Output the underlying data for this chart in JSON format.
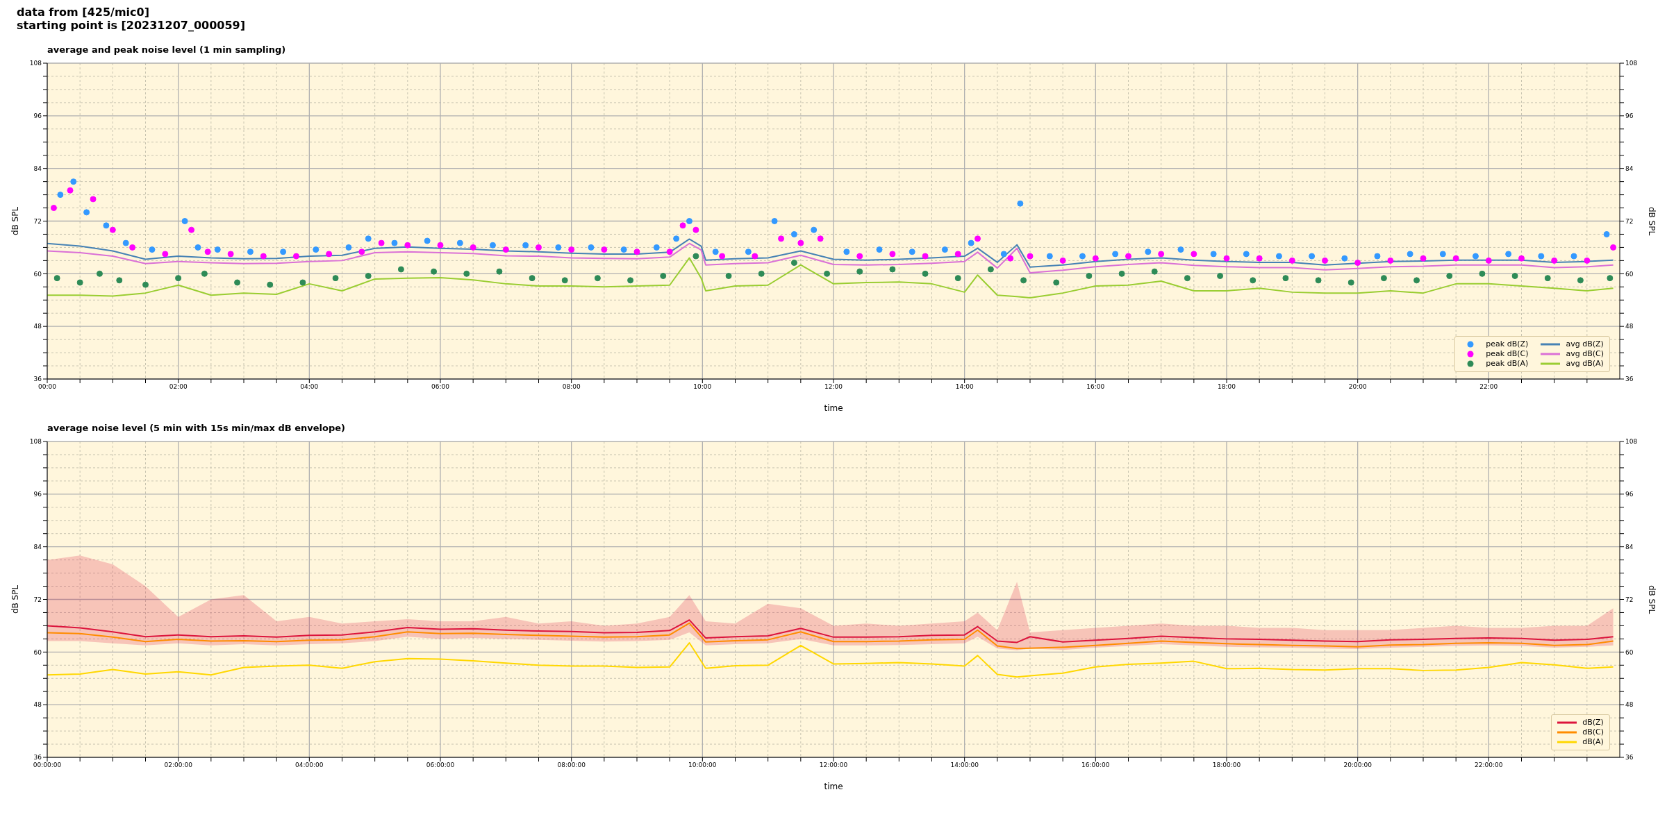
{
  "chart_data": [
    {
      "type": "line",
      "title": "average and peak noise level (1 min sampling)",
      "annotations": [
        "data from [425/mic0]",
        "starting point is [20231207_000059]"
      ],
      "xlabel": "time",
      "ylabel": "dB SPL",
      "y2label": "dB SPL",
      "xlim": [
        0,
        24
      ],
      "xticks": [
        {
          "value": 0,
          "label": "00:00"
        },
        {
          "value": 0.5,
          "label": null
        },
        {
          "value": 1,
          "label": null
        },
        {
          "value": 1.5,
          "label": null
        },
        {
          "value": 2,
          "label": "02:00"
        },
        {
          "value": 2.5,
          "label": null
        },
        {
          "value": 3,
          "label": null
        },
        {
          "value": 3.5,
          "label": null
        },
        {
          "value": 4,
          "label": "04:00"
        },
        {
          "value": 4.5,
          "label": null
        },
        {
          "value": 5,
          "label": null
        },
        {
          "value": 5.5,
          "label": null
        },
        {
          "value": 6,
          "label": "06:00"
        },
        {
          "value": 6.5,
          "label": null
        },
        {
          "value": 7,
          "label": null
        },
        {
          "value": 7.5,
          "label": null
        },
        {
          "value": 8,
          "label": "08:00"
        },
        {
          "value": 8.5,
          "label": null
        },
        {
          "value": 9,
          "label": null
        },
        {
          "value": 9.5,
          "label": null
        },
        {
          "value": 10,
          "label": "10:00"
        },
        {
          "value": 10.5,
          "label": null
        },
        {
          "value": 11,
          "label": null
        },
        {
          "value": 11.5,
          "label": null
        },
        {
          "value": 12,
          "label": "12:00"
        },
        {
          "value": 12.5,
          "label": null
        },
        {
          "value": 13,
          "label": null
        },
        {
          "value": 13.5,
          "label": null
        },
        {
          "value": 14,
          "label": "14:00"
        },
        {
          "value": 14.5,
          "label": null
        },
        {
          "value": 15,
          "label": null
        },
        {
          "value": 15.5,
          "label": null
        },
        {
          "value": 16,
          "label": "16:00"
        },
        {
          "value": 16.5,
          "label": null
        },
        {
          "value": 17,
          "label": null
        },
        {
          "value": 17.5,
          "label": null
        },
        {
          "value": 18,
          "label": "18:00"
        },
        {
          "value": 18.5,
          "label": null
        },
        {
          "value": 19,
          "label": null
        },
        {
          "value": 19.5,
          "label": null
        },
        {
          "value": 20,
          "label": "20:00"
        },
        {
          "value": 20.5,
          "label": null
        },
        {
          "value": 21,
          "label": null
        },
        {
          "value": 21.5,
          "label": null
        },
        {
          "value": 22,
          "label": "22:00"
        },
        {
          "value": 22.5,
          "label": null
        },
        {
          "value": 23,
          "label": null
        },
        {
          "value": 23.5,
          "label": null
        }
      ],
      "ylim": [
        36,
        108
      ],
      "yticks": [
        36,
        {
          "value": 39,
          "label": null
        },
        {
          "value": 42,
          "label": null
        },
        {
          "value": 45,
          "label": null
        },
        48,
        {
          "value": 51,
          "label": null
        },
        {
          "value": 54,
          "label": null
        },
        {
          "value": 57,
          "label": null
        },
        60,
        {
          "value": 63,
          "label": null
        },
        {
          "value": 66,
          "label": null
        },
        {
          "value": 69,
          "label": null
        },
        72,
        {
          "value": 75,
          "label": null
        },
        {
          "value": 78,
          "label": null
        },
        {
          "value": 81,
          "label": null
        },
        84,
        {
          "value": 87,
          "label": null
        },
        {
          "value": 90,
          "label": null
        },
        {
          "value": 93,
          "label": null
        },
        96,
        {
          "value": 99,
          "label": null
        },
        {
          "value": 102,
          "label": null
        },
        {
          "value": 105,
          "label": null
        },
        108
      ],
      "y2lim": [
        36,
        108
      ],
      "y2ticks": [
        36,
        {
          "value": 39,
          "label": null
        },
        {
          "value": 42,
          "label": null
        },
        {
          "value": 45,
          "label": null
        },
        48,
        {
          "value": 51,
          "label": null
        },
        {
          "value": 54,
          "label": null
        },
        {
          "value": 57,
          "label": null
        },
        60,
        {
          "value": 63,
          "label": null
        },
        {
          "value": 66,
          "label": null
        },
        {
          "value": 69,
          "label": null
        },
        72,
        {
          "value": 75,
          "label": null
        },
        {
          "value": 78,
          "label": null
        },
        {
          "value": 81,
          "label": null
        },
        84,
        {
          "value": 87,
          "label": null
        },
        {
          "value": 90,
          "label": null
        },
        {
          "value": 93,
          "label": null
        },
        96,
        {
          "value": 99,
          "label": null
        },
        {
          "value": 102,
          "label": null
        },
        {
          "value": 105,
          "label": null
        },
        108
      ],
      "grid": true,
      "legend": "bottom right",
      "line_style": "solid",
      "series": [
        {
          "name": "peak dB(Z)",
          "type": "scatter",
          "marker": "circle",
          "color": "#3399ff",
          "x": [
            0.2,
            0.4,
            0.6,
            0.9,
            1.2,
            1.6,
            2.1,
            2.3,
            2.6,
            3.1,
            3.6,
            4.1,
            4.6,
            4.9,
            5.3,
            5.8,
            6.3,
            6.8,
            7.3,
            7.8,
            8.3,
            8.8,
            9.3,
            9.6,
            9.8,
            10.2,
            10.7,
            11.1,
            11.4,
            11.7,
            12.2,
            12.7,
            13.2,
            13.7,
            14.1,
            14.6,
            14.85,
            15.3,
            15.8,
            16.3,
            16.8,
            17.3,
            17.8,
            18.3,
            18.8,
            19.3,
            19.8,
            20.3,
            20.8,
            21.3,
            21.8,
            22.3,
            22.8,
            23.3,
            23.8
          ],
          "values": [
            78,
            81,
            74,
            71,
            67,
            65.5,
            72,
            66,
            65.5,
            65,
            65,
            65.5,
            66,
            68,
            67,
            67.5,
            67,
            66.5,
            66.5,
            66,
            66,
            65.5,
            66,
            68,
            72,
            65,
            65,
            72,
            69,
            70,
            65,
            65.5,
            65,
            65.5,
            67,
            64.5,
            76,
            64,
            64,
            64.5,
            65,
            65.5,
            64.5,
            64.5,
            64,
            64,
            63.5,
            64,
            64.5,
            64.5,
            64,
            64.5,
            64,
            64,
            69
          ]
        },
        {
          "name": "peak dB(C)",
          "type": "scatter",
          "marker": "circle",
          "color": "#ff00ff",
          "x": [
            0.1,
            0.35,
            0.7,
            1.0,
            1.3,
            1.8,
            2.2,
            2.45,
            2.8,
            3.3,
            3.8,
            4.3,
            4.8,
            5.1,
            5.5,
            6.0,
            6.5,
            7.0,
            7.5,
            8.0,
            8.5,
            9.0,
            9.5,
            9.7,
            9.9,
            10.3,
            10.8,
            11.2,
            11.5,
            11.8,
            12.4,
            12.9,
            13.4,
            13.9,
            14.2,
            14.7,
            15.0,
            15.5,
            16.0,
            16.5,
            17.0,
            17.5,
            18.0,
            18.5,
            19.0,
            19.5,
            20.0,
            20.5,
            21.0,
            21.5,
            22.0,
            22.5,
            23.0,
            23.5,
            23.9
          ],
          "values": [
            75,
            79,
            77,
            70,
            66,
            64.5,
            70,
            65,
            64.5,
            64,
            64,
            64.5,
            65,
            67,
            66.5,
            66.5,
            66,
            65.5,
            66,
            65.5,
            65.5,
            65,
            65,
            71,
            70,
            64,
            64,
            68,
            67,
            68,
            64,
            64.5,
            64,
            64.5,
            68,
            63.5,
            64,
            63,
            63.5,
            64,
            64.5,
            64.5,
            63.5,
            63.5,
            63,
            63,
            62.5,
            63,
            63.5,
            63.5,
            63,
            63.5,
            63,
            63,
            66
          ]
        },
        {
          "name": "peak dB(A)",
          "type": "scatter",
          "marker": "circle",
          "color": "#2e8b57",
          "x": [
            0.15,
            0.5,
            0.8,
            1.1,
            1.5,
            2.0,
            2.4,
            2.9,
            3.4,
            3.9,
            4.4,
            4.9,
            5.4,
            5.9,
            6.4,
            6.9,
            7.4,
            7.9,
            8.4,
            8.9,
            9.4,
            9.9,
            10.4,
            10.9,
            11.4,
            11.9,
            12.4,
            12.9,
            13.4,
            13.9,
            14.4,
            14.9,
            15.4,
            15.9,
            16.4,
            16.9,
            17.4,
            17.9,
            18.4,
            18.9,
            19.4,
            19.9,
            20.4,
            20.9,
            21.4,
            21.9,
            22.4,
            22.9,
            23.4,
            23.85
          ],
          "values": [
            59,
            58,
            60,
            58.5,
            57.5,
            59,
            60,
            58,
            57.5,
            58,
            59,
            59.5,
            61,
            60.5,
            60,
            60.5,
            59,
            58.5,
            59,
            58.5,
            59.5,
            64,
            59.5,
            60,
            62.5,
            60,
            60.5,
            61,
            60,
            59,
            61,
            58.5,
            58,
            59.5,
            60,
            60.5,
            59,
            59.5,
            58.5,
            59,
            58.5,
            58,
            59,
            58.5,
            59.5,
            60,
            59.5,
            59,
            58.5,
            59
          ]
        },
        {
          "name": "avg dB(Z)",
          "type": "line",
          "marker": "none",
          "color": "#4682b4",
          "x": [
            0,
            0.5,
            1,
            1.5,
            2,
            2.5,
            3,
            3.5,
            4,
            4.5,
            5,
            5.5,
            6,
            6.5,
            7,
            7.5,
            8,
            8.5,
            9,
            9.5,
            9.8,
            9.98,
            10.05,
            10.5,
            11,
            11.5,
            12,
            12.5,
            13,
            13.5,
            14,
            14.2,
            14.5,
            14.8,
            15,
            15.5,
            16,
            16.5,
            17,
            17.5,
            18,
            18.5,
            19,
            19.5,
            20,
            20.5,
            21,
            21.5,
            22,
            22.5,
            23,
            23.5,
            23.9
          ],
          "values": [
            66.9,
            66.3,
            65.2,
            63.3,
            64,
            63.6,
            63.4,
            63.5,
            64,
            64.2,
            65.8,
            66.1,
            65.8,
            65.6,
            65.2,
            65,
            64.7,
            64.5,
            64.5,
            64.9,
            67.9,
            66.3,
            63.1,
            63.4,
            63.6,
            65.2,
            63.3,
            63.1,
            63.3,
            63.6,
            64,
            65.8,
            62.6,
            66.6,
            61.5,
            62,
            62.8,
            63.3,
            63.6,
            63.1,
            62.8,
            62.6,
            62.6,
            62,
            62.4,
            62.8,
            62.9,
            63.1,
            63.1,
            63.1,
            62.6,
            62.8,
            63.1
          ]
        },
        {
          "name": "avg dB(C)",
          "type": "line",
          "marker": "none",
          "color": "#da70d6",
          "x": [
            0,
            0.5,
            1,
            1.5,
            2,
            2.5,
            3,
            3.5,
            4,
            4.5,
            5,
            5.5,
            6,
            6.5,
            7,
            7.5,
            8,
            8.5,
            9,
            9.5,
            9.8,
            9.98,
            10.05,
            10.5,
            11,
            11.5,
            12,
            12.5,
            13,
            13.5,
            14,
            14.2,
            14.5,
            14.8,
            15,
            15.5,
            16,
            16.5,
            17,
            17.5,
            18,
            18.5,
            19,
            19.5,
            20,
            20.5,
            21,
            21.5,
            22,
            22.5,
            23,
            23.5,
            23.9
          ],
          "values": [
            65.2,
            64.8,
            64.0,
            62.3,
            62.8,
            62.5,
            62.3,
            62.4,
            62.8,
            63.0,
            64.8,
            65.0,
            64.8,
            64.6,
            64.1,
            64.0,
            63.6,
            63.5,
            63.4,
            63.8,
            66.9,
            65.4,
            62.0,
            62.3,
            62.5,
            64.2,
            62.1,
            62.0,
            62.1,
            62.4,
            62.8,
            64.9,
            61.3,
            65.8,
            60.2,
            60.8,
            61.6,
            62.1,
            62.5,
            61.9,
            61.6,
            61.4,
            61.4,
            60.9,
            61.2,
            61.6,
            61.7,
            62.0,
            62.0,
            62.0,
            61.4,
            61.6,
            62.0
          ]
        },
        {
          "name": "avg dB(A)",
          "type": "line",
          "marker": "none",
          "color": "#9acd32",
          "x": [
            0,
            0.5,
            1,
            1.5,
            2,
            2.5,
            3,
            3.5,
            4,
            4.5,
            5,
            5.5,
            6,
            6.5,
            7,
            7.5,
            8,
            8.5,
            9,
            9.5,
            9.8,
            9.98,
            10.05,
            10.5,
            11,
            11.5,
            12,
            12.5,
            13,
            13.5,
            14,
            14.2,
            14.5,
            14.8,
            15,
            15.5,
            16,
            16.5,
            17,
            17.5,
            18,
            18.5,
            19,
            19.5,
            20,
            20.5,
            21,
            21.5,
            22,
            22.5,
            23,
            23.5,
            23.9
          ],
          "values": [
            55.1,
            55.1,
            54.9,
            55.6,
            57.4,
            55.1,
            55.6,
            55.3,
            57.7,
            56.1,
            58.8,
            59,
            59.1,
            58.6,
            57.7,
            57.2,
            57.2,
            57,
            57.2,
            57.4,
            63.6,
            59.0,
            56.1,
            57.2,
            57.4,
            62,
            57.7,
            58,
            58.1,
            57.7,
            55.8,
            59.7,
            55.1,
            54.8,
            54.5,
            55.6,
            57.2,
            57.4,
            58.3,
            56.1,
            56.1,
            56.7,
            55.8,
            55.6,
            55.6,
            56.1,
            55.6,
            57.7,
            57.7,
            57.2,
            56.7,
            56.1,
            56.7
          ]
        }
      ]
    },
    {
      "type": "line",
      "title": "average noise level (5 min with 15s min/max dB envelope)",
      "xlabel": "time",
      "ylabel": "dB SPL",
      "y2label": "dB SPL",
      "xlim": [
        0,
        24
      ],
      "xticks": [
        {
          "value": 0,
          "label": "00:00:00"
        },
        {
          "value": 0.5,
          "label": null
        },
        {
          "value": 1,
          "label": null
        },
        {
          "value": 1.5,
          "label": null
        },
        {
          "value": 2,
          "label": "02:00:00"
        },
        {
          "value": 2.5,
          "label": null
        },
        {
          "value": 3,
          "label": null
        },
        {
          "value": 3.5,
          "label": null
        },
        {
          "value": 4,
          "label": "04:00:00"
        },
        {
          "value": 4.5,
          "label": null
        },
        {
          "value": 5,
          "label": null
        },
        {
          "value": 5.5,
          "label": null
        },
        {
          "value": 6,
          "label": "06:00:00"
        },
        {
          "value": 6.5,
          "label": null
        },
        {
          "value": 7,
          "label": null
        },
        {
          "value": 7.5,
          "label": null
        },
        {
          "value": 8,
          "label": "08:00:00"
        },
        {
          "value": 8.5,
          "label": null
        },
        {
          "value": 9,
          "label": null
        },
        {
          "value": 9.5,
          "label": null
        },
        {
          "value": 10,
          "label": "10:00:00"
        },
        {
          "value": 10.5,
          "label": null
        },
        {
          "value": 11,
          "label": null
        },
        {
          "value": 11.5,
          "label": null
        },
        {
          "value": 12,
          "label": "12:00:00"
        },
        {
          "value": 12.5,
          "label": null
        },
        {
          "value": 13,
          "label": null
        },
        {
          "value": 13.5,
          "label": null
        },
        {
          "value": 14,
          "label": "14:00:00"
        },
        {
          "value": 14.5,
          "label": null
        },
        {
          "value": 15,
          "label": null
        },
        {
          "value": 15.5,
          "label": null
        },
        {
          "value": 16,
          "label": "16:00:00"
        },
        {
          "value": 16.5,
          "label": null
        },
        {
          "value": 17,
          "label": null
        },
        {
          "value": 17.5,
          "label": null
        },
        {
          "value": 18,
          "label": "18:00:00"
        },
        {
          "value": 18.5,
          "label": null
        },
        {
          "value": 19,
          "label": null
        },
        {
          "value": 19.5,
          "label": null
        },
        {
          "value": 20,
          "label": "20:00:00"
        },
        {
          "value": 20.5,
          "label": null
        },
        {
          "value": 21,
          "label": null
        },
        {
          "value": 21.5,
          "label": null
        },
        {
          "value": 22,
          "label": "22:00:00"
        },
        {
          "value": 22.5,
          "label": null
        },
        {
          "value": 23,
          "label": null
        },
        {
          "value": 23.5,
          "label": null
        }
      ],
      "ylim": [
        36,
        108
      ],
      "yticks": [
        36,
        {
          "value": 39,
          "label": null
        },
        {
          "value": 42,
          "label": null
        },
        {
          "value": 45,
          "label": null
        },
        48,
        {
          "value": 51,
          "label": null
        },
        {
          "value": 54,
          "label": null
        },
        {
          "value": 57,
          "label": null
        },
        60,
        {
          "value": 63,
          "label": null
        },
        {
          "value": 66,
          "label": null
        },
        {
          "value": 69,
          "label": null
        },
        72,
        {
          "value": 75,
          "label": null
        },
        {
          "value": 78,
          "label": null
        },
        {
          "value": 81,
          "label": null
        },
        84,
        {
          "value": 87,
          "label": null
        },
        {
          "value": 90,
          "label": null
        },
        {
          "value": 93,
          "label": null
        },
        96,
        {
          "value": 99,
          "label": null
        },
        {
          "value": 102,
          "label": null
        },
        {
          "value": 105,
          "label": null
        },
        108
      ],
      "y2lim": [
        36,
        108
      ],
      "y2ticks": [
        36,
        {
          "value": 39,
          "label": null
        },
        {
          "value": 42,
          "label": null
        },
        {
          "value": 45,
          "label": null
        },
        48,
        {
          "value": 51,
          "label": null
        },
        {
          "value": 54,
          "label": null
        },
        {
          "value": 57,
          "label": null
        },
        60,
        {
          "value": 63,
          "label": null
        },
        {
          "value": 66,
          "label": null
        },
        {
          "value": 69,
          "label": null
        },
        72,
        {
          "value": 75,
          "label": null
        },
        {
          "value": 78,
          "label": null
        },
        {
          "value": 81,
          "label": null
        },
        84,
        {
          "value": 87,
          "label": null
        },
        {
          "value": 90,
          "label": null
        },
        {
          "value": 93,
          "label": null
        },
        96,
        {
          "value": 99,
          "label": null
        },
        {
          "value": 102,
          "label": null
        },
        {
          "value": 105,
          "label": null
        },
        108
      ],
      "grid": true,
      "legend": "bottom right",
      "line_style": "solid",
      "marker": "none",
      "series": [
        {
          "name": "dB(Z)",
          "color": "#dc143c",
          "x": [
            0,
            0.5,
            1,
            1.5,
            2,
            2.5,
            3,
            3.5,
            4,
            4.5,
            5,
            5.5,
            6,
            6.5,
            7,
            7.5,
            8,
            8.5,
            9,
            9.5,
            9.8,
            10.05,
            10.5,
            11,
            11.5,
            12,
            12.5,
            13,
            13.5,
            14,
            14.2,
            14.5,
            14.8,
            15,
            15.5,
            16,
            16.5,
            17,
            17.5,
            18,
            18.5,
            19,
            19.5,
            20,
            20.5,
            21,
            21.5,
            22,
            22.5,
            23,
            23.5,
            23.9
          ],
          "values": [
            66,
            65.5,
            64.6,
            63.5,
            63.9,
            63.5,
            63.7,
            63.4,
            63.8,
            63.9,
            64.6,
            65.6,
            65.2,
            65.3,
            65,
            64.8,
            64.7,
            64.4,
            64.5,
            64.9,
            67.3,
            63.2,
            63.5,
            63.7,
            65.4,
            63.4,
            63.4,
            63.5,
            63.8,
            63.9,
            65.8,
            62.5,
            62.2,
            63.5,
            62.3,
            62.7,
            63.1,
            63.6,
            63.3,
            63,
            62.9,
            62.7,
            62.5,
            62.4,
            62.8,
            62.9,
            63.1,
            63.2,
            63.1,
            62.7,
            62.9,
            63.5
          ],
          "lower": [
            62.5,
            62.5,
            62,
            61.5,
            62,
            61.5,
            61.8,
            61.5,
            61.8,
            62,
            62.5,
            63.5,
            63,
            63.2,
            63,
            62.8,
            62.6,
            62.4,
            62.5,
            62.8,
            64.5,
            61.5,
            61.8,
            62,
            63,
            61.5,
            61.5,
            61.6,
            61.8,
            62,
            63.5,
            60.8,
            60.4,
            60.8,
            60.5,
            61,
            61.4,
            61.8,
            61.5,
            61.2,
            61.1,
            61,
            60.8,
            60.7,
            61,
            61.2,
            61.4,
            61.5,
            61.4,
            61,
            61.2,
            61.5
          ],
          "upper": [
            81,
            82,
            80,
            75,
            68,
            72,
            73,
            67,
            68,
            66.5,
            67,
            67.5,
            67,
            67,
            68,
            66.5,
            67,
            66,
            66.5,
            68,
            73,
            67,
            66.5,
            71,
            70,
            66,
            66.5,
            66,
            66.5,
            67,
            69,
            65,
            76,
            64.5,
            65,
            65.5,
            66,
            66.5,
            66,
            66,
            65.5,
            65.5,
            65,
            65,
            65,
            65.5,
            66,
            65.5,
            65.5,
            66,
            66,
            70
          ]
        },
        {
          "name": "dB(C)",
          "color": "#ff8c00",
          "x": [
            0,
            0.5,
            1,
            1.5,
            2,
            2.5,
            3,
            3.5,
            4,
            4.5,
            5,
            5.5,
            6,
            6.5,
            7,
            7.5,
            8,
            8.5,
            9,
            9.5,
            9.8,
            10.05,
            10.5,
            11,
            11.5,
            12,
            12.5,
            13,
            13.5,
            14,
            14.2,
            14.5,
            14.8,
            15,
            15.5,
            16,
            16.5,
            17,
            17.5,
            18,
            18.5,
            19,
            19.5,
            20,
            20.5,
            21,
            21.5,
            22,
            22.5,
            23,
            23.5,
            23.9
          ],
          "values": [
            64.4,
            64.2,
            63.4,
            62.4,
            62.9,
            62.5,
            62.6,
            62.4,
            62.7,
            62.8,
            63.5,
            64.6,
            64.2,
            64.3,
            64,
            63.8,
            63.6,
            63.4,
            63.5,
            63.9,
            66.6,
            62.3,
            62.6,
            62.8,
            64.6,
            62.4,
            62.4,
            62.5,
            62.8,
            62.9,
            65,
            61.4,
            60.8,
            60.9,
            61.1,
            61.5,
            62,
            62.5,
            62.2,
            61.9,
            61.7,
            61.5,
            61.4,
            61.2,
            61.6,
            61.7,
            62,
            62.1,
            62,
            61.5,
            61.7,
            62.5
          ]
        },
        {
          "name": "dB(A)",
          "color": "#ffd700",
          "x": [
            0,
            0.5,
            1,
            1.5,
            2,
            2.5,
            3,
            3.5,
            4,
            4.5,
            5,
            5.5,
            6,
            6.5,
            7,
            7.5,
            8,
            8.5,
            9,
            9.5,
            9.8,
            10.05,
            10.5,
            11,
            11.5,
            12,
            12.5,
            13,
            13.5,
            14,
            14.2,
            14.5,
            14.8,
            15,
            15.5,
            16,
            16.5,
            17,
            17.5,
            18,
            18.5,
            19,
            19.5,
            20,
            20.5,
            21,
            21.5,
            22,
            22.5,
            23,
            23.5,
            23.9
          ],
          "values": [
            54.8,
            55,
            56,
            55,
            55.5,
            54.8,
            56.5,
            56.8,
            57,
            56.3,
            57.8,
            58.5,
            58.4,
            58,
            57.5,
            57,
            56.8,
            56.8,
            56.5,
            56.6,
            62.1,
            56.3,
            56.9,
            57,
            61.5,
            57.3,
            57.4,
            57.6,
            57.3,
            56.8,
            59.2,
            54.9,
            54.3,
            54.6,
            55.2,
            56.6,
            57.2,
            57.5,
            57.9,
            56.2,
            56.3,
            56,
            55.9,
            56.2,
            56.2,
            55.8,
            55.9,
            56.5,
            57.6,
            57.1,
            56.3,
            56.6
          ]
        }
      ]
    }
  ]
}
